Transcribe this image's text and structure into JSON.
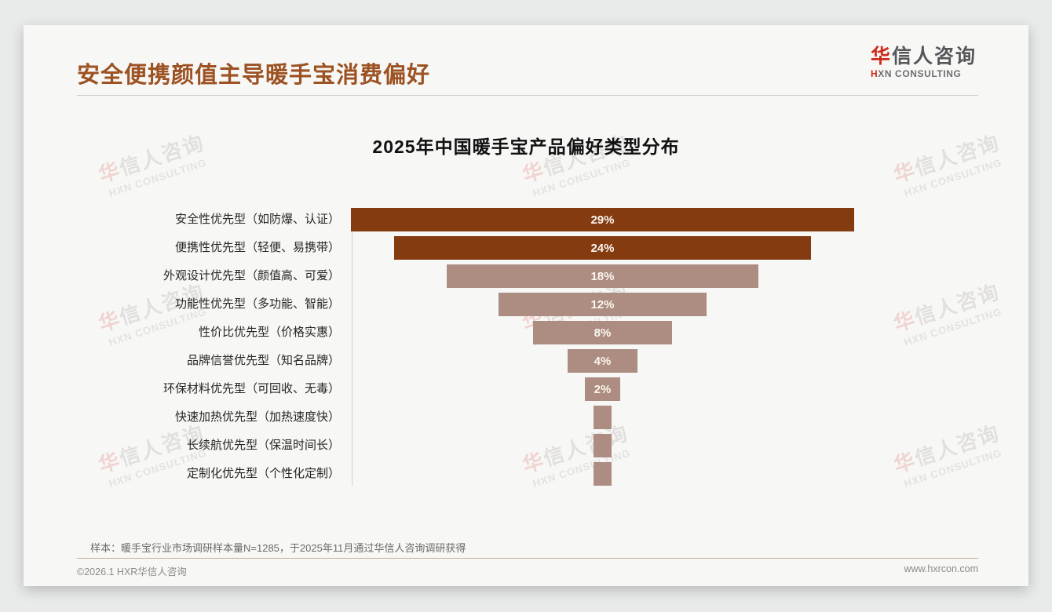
{
  "header": {
    "title": "安全便携颜值主导暖手宝消费偏好"
  },
  "logo": {
    "cn_first": "华",
    "cn_rest": "信人咨询",
    "en_first": "H",
    "en_rest": "XN CONSULTING"
  },
  "watermark": {
    "cn_first": "华",
    "cn_rest": "信人咨询",
    "en": "HXN CONSULTING"
  },
  "chart_data": {
    "type": "bar",
    "subtype": "centered-funnel-horizontal",
    "title": "2025年中国暖手宝产品偏好类型分布",
    "categories": [
      "安全性优先型（如防爆、认证）",
      "便携性优先型（轻便、易携带）",
      "外观设计优先型（颜值高、可爱）",
      "功能性优先型（多功能、智能）",
      "性价比优先型（价格实惠）",
      "品牌信誉优先型（知名品牌）",
      "环保材料优先型（可回收、无毒）",
      "快速加热优先型（加热速度快）",
      "长续航优先型（保温时间长）",
      "定制化优先型（个性化定制）"
    ],
    "values": [
      29,
      24,
      18,
      12,
      8,
      4,
      2,
      1,
      1,
      1
    ],
    "bar_labels": [
      "29%",
      "24%",
      "18%",
      "12%",
      "8%",
      "4%",
      "2%",
      "",
      "",
      ""
    ],
    "unit": "%",
    "xlim": [
      0,
      29
    ],
    "grid": false,
    "legend": false,
    "colors": {
      "dark_bar": "#843b10",
      "light_bar": "#ad8c81",
      "dark_bar_count": 2
    }
  },
  "footer": {
    "note": "样本：暖手宝行业市场调研样本量N=1285，于2025年11月通过华信人咨询调研获得",
    "copyright": "©2026.1 HXR华信人咨询",
    "website": "www.hxrcon.com"
  }
}
